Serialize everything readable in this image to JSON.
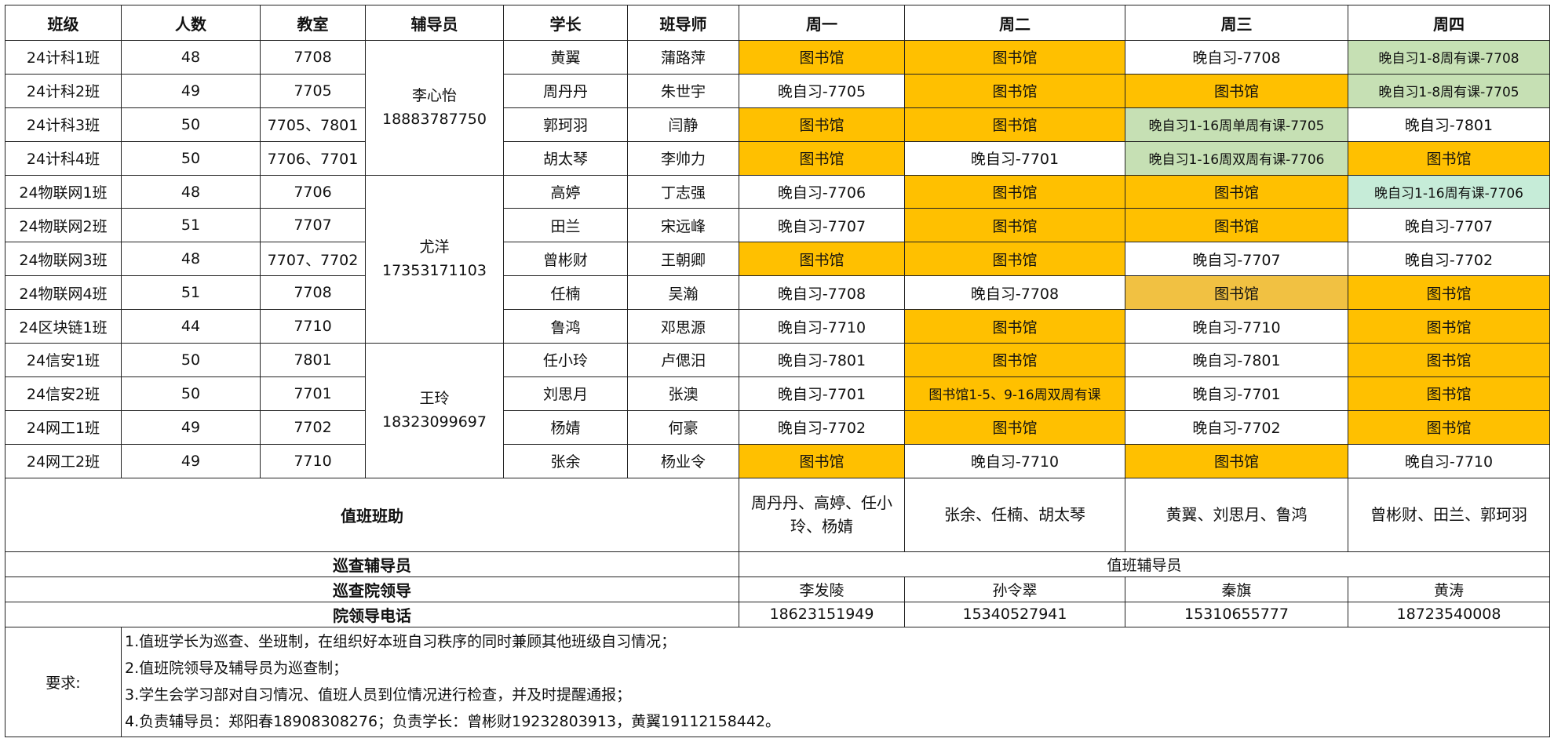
{
  "colors": {
    "library": "#ffc000",
    "library_light": "#f1c142",
    "green": "#c6e0b4",
    "teal": "#c6ecd8",
    "white": "#ffffff"
  },
  "headers": [
    "班级",
    "人数",
    "教室",
    "辅导员",
    "学长",
    "班导师",
    "周一",
    "周二",
    "周三",
    "周四"
  ],
  "counselors": [
    {
      "name": "李心怡",
      "phone": "18883787750",
      "rows": 4
    },
    {
      "name": "尤洋",
      "phone": "17353171103",
      "rows": 5
    },
    {
      "name": "王玲",
      "phone": "18323099697",
      "rows": 4
    }
  ],
  "rows": [
    {
      "class": "24计科1班",
      "count": "48",
      "room": "7708",
      "leader": "黄翼",
      "teacher": "蒲路萍",
      "days": [
        {
          "text": "图书馆",
          "fill": "library"
        },
        {
          "text": "图书馆",
          "fill": "library"
        },
        {
          "text": "晚自习-7708",
          "fill": "white"
        },
        {
          "text": "晚自习1-8周有课-7708",
          "fill": "green"
        }
      ]
    },
    {
      "class": "24计科2班",
      "count": "49",
      "room": "7705",
      "leader": "周丹丹",
      "teacher": "朱世宇",
      "days": [
        {
          "text": "晚自习-7705",
          "fill": "white"
        },
        {
          "text": "图书馆",
          "fill": "library"
        },
        {
          "text": "图书馆",
          "fill": "library"
        },
        {
          "text": "晚自习1-8周有课-7705",
          "fill": "green"
        }
      ]
    },
    {
      "class": "24计科3班",
      "count": "50",
      "room": "7705、7801",
      "leader": "郭珂羽",
      "teacher": "闫静",
      "days": [
        {
          "text": "图书馆",
          "fill": "library"
        },
        {
          "text": "图书馆",
          "fill": "library"
        },
        {
          "text": "晚自习1-16周单周有课-7705",
          "fill": "green"
        },
        {
          "text": "晚自习-7801",
          "fill": "white"
        }
      ]
    },
    {
      "class": "24计科4班",
      "count": "50",
      "room": "7706、7701",
      "leader": "胡太琴",
      "teacher": "李帅力",
      "days": [
        {
          "text": "图书馆",
          "fill": "library"
        },
        {
          "text": "晚自习-7701",
          "fill": "white"
        },
        {
          "text": "晚自习1-16周双周有课-7706",
          "fill": "green"
        },
        {
          "text": "图书馆",
          "fill": "library"
        }
      ]
    },
    {
      "class": "24物联网1班",
      "count": "48",
      "room": "7706",
      "leader": "高婷",
      "teacher": "丁志强",
      "days": [
        {
          "text": "晚自习-7706",
          "fill": "white"
        },
        {
          "text": "图书馆",
          "fill": "library"
        },
        {
          "text": "图书馆",
          "fill": "library"
        },
        {
          "text": "晚自习1-16周有课-7706",
          "fill": "teal"
        }
      ]
    },
    {
      "class": "24物联网2班",
      "count": "51",
      "room": "7707",
      "leader": "田兰",
      "teacher": "宋远峰",
      "days": [
        {
          "text": "晚自习-7707",
          "fill": "white"
        },
        {
          "text": "图书馆",
          "fill": "library"
        },
        {
          "text": "图书馆",
          "fill": "library"
        },
        {
          "text": "晚自习-7707",
          "fill": "white"
        }
      ]
    },
    {
      "class": "24物联网3班",
      "count": "48",
      "room": "7707、7702",
      "leader": "曾彬财",
      "teacher": "王朝卿",
      "days": [
        {
          "text": "图书馆",
          "fill": "library"
        },
        {
          "text": "图书馆",
          "fill": "library"
        },
        {
          "text": "晚自习-7707",
          "fill": "white"
        },
        {
          "text": "晚自习-7702",
          "fill": "white"
        }
      ]
    },
    {
      "class": "24物联网4班",
      "count": "51",
      "room": "7708",
      "leader": "任楠",
      "teacher": "吴瀚",
      "days": [
        {
          "text": "晚自习-7708",
          "fill": "white"
        },
        {
          "text": "晚自习-7708",
          "fill": "white"
        },
        {
          "text": "图书馆",
          "fill": "library_light"
        },
        {
          "text": "图书馆",
          "fill": "library"
        }
      ]
    },
    {
      "class": "24区块链1班",
      "count": "44",
      "room": "7710",
      "leader": "鲁鸿",
      "teacher": "邓思源",
      "days": [
        {
          "text": "晚自习-7710",
          "fill": "white"
        },
        {
          "text": "图书馆",
          "fill": "library"
        },
        {
          "text": "晚自习-7710",
          "fill": "white"
        },
        {
          "text": "图书馆",
          "fill": "library"
        }
      ]
    },
    {
      "class": "24信安1班",
      "count": "50",
      "room": "7801",
      "leader": "任小玲",
      "teacher": "卢偲汨",
      "days": [
        {
          "text": "晚自习-7801",
          "fill": "white"
        },
        {
          "text": "图书馆",
          "fill": "library"
        },
        {
          "text": "晚自习-7801",
          "fill": "white"
        },
        {
          "text": "图书馆",
          "fill": "library"
        }
      ]
    },
    {
      "class": "24信安2班",
      "count": "50",
      "room": "7701",
      "leader": "刘思月",
      "teacher": "张澳",
      "days": [
        {
          "text": "晚自习-7701",
          "fill": "white"
        },
        {
          "text": "图书馆1-5、9-16周双周有课",
          "fill": "library"
        },
        {
          "text": "晚自习-7701",
          "fill": "white"
        },
        {
          "text": "图书馆",
          "fill": "library"
        }
      ]
    },
    {
      "class": "24网工1班",
      "count": "49",
      "room": "7702",
      "leader": "杨婧",
      "teacher": "何豪",
      "days": [
        {
          "text": "晚自习-7702",
          "fill": "white"
        },
        {
          "text": "图书馆",
          "fill": "library"
        },
        {
          "text": "晚自习-7702",
          "fill": "white"
        },
        {
          "text": "图书馆",
          "fill": "library"
        }
      ]
    },
    {
      "class": "24网工2班",
      "count": "49",
      "room": "7710",
      "leader": "张余",
      "teacher": "杨业令",
      "days": [
        {
          "text": "图书馆",
          "fill": "library"
        },
        {
          "text": "晚自习-7710",
          "fill": "white"
        },
        {
          "text": "图书馆",
          "fill": "library"
        },
        {
          "text": "晚自习-7710",
          "fill": "white"
        }
      ]
    }
  ],
  "duty_assistants": {
    "label": "值班班助",
    "values": [
      "周丹丹、高婷、任小玲、杨婧",
      "张余、任楠、胡太琴",
      "黄翼、刘思月、鲁鸿",
      "曾彬财、田兰、郭珂羽"
    ]
  },
  "patrol_counselor": {
    "label": "巡查辅导员",
    "value": "值班辅导员"
  },
  "patrol_leaders": {
    "label": "巡查院领导",
    "values": [
      "李发陵",
      "孙令翠",
      "秦旗",
      "黄涛"
    ]
  },
  "leader_phones": {
    "label": "院领导电话",
    "values": [
      "18623151949",
      "15340527941",
      "15310655777",
      "18723540008"
    ]
  },
  "requirements": {
    "label": "要求:",
    "items": [
      "1.值班学长为巡查、坐班制，在组织好本班自习秩序的同时兼顾其他班级自习情况；",
      "2.值班院领导及辅导员为巡查制；",
      "3.学生会学习部对自习情况、值班人员到位情况进行检查，并及时提醒通报；",
      "4.负责辅导员：郑阳春18908308276；负责学长：曾彬财19232803913，黄翼19112158442。"
    ]
  }
}
